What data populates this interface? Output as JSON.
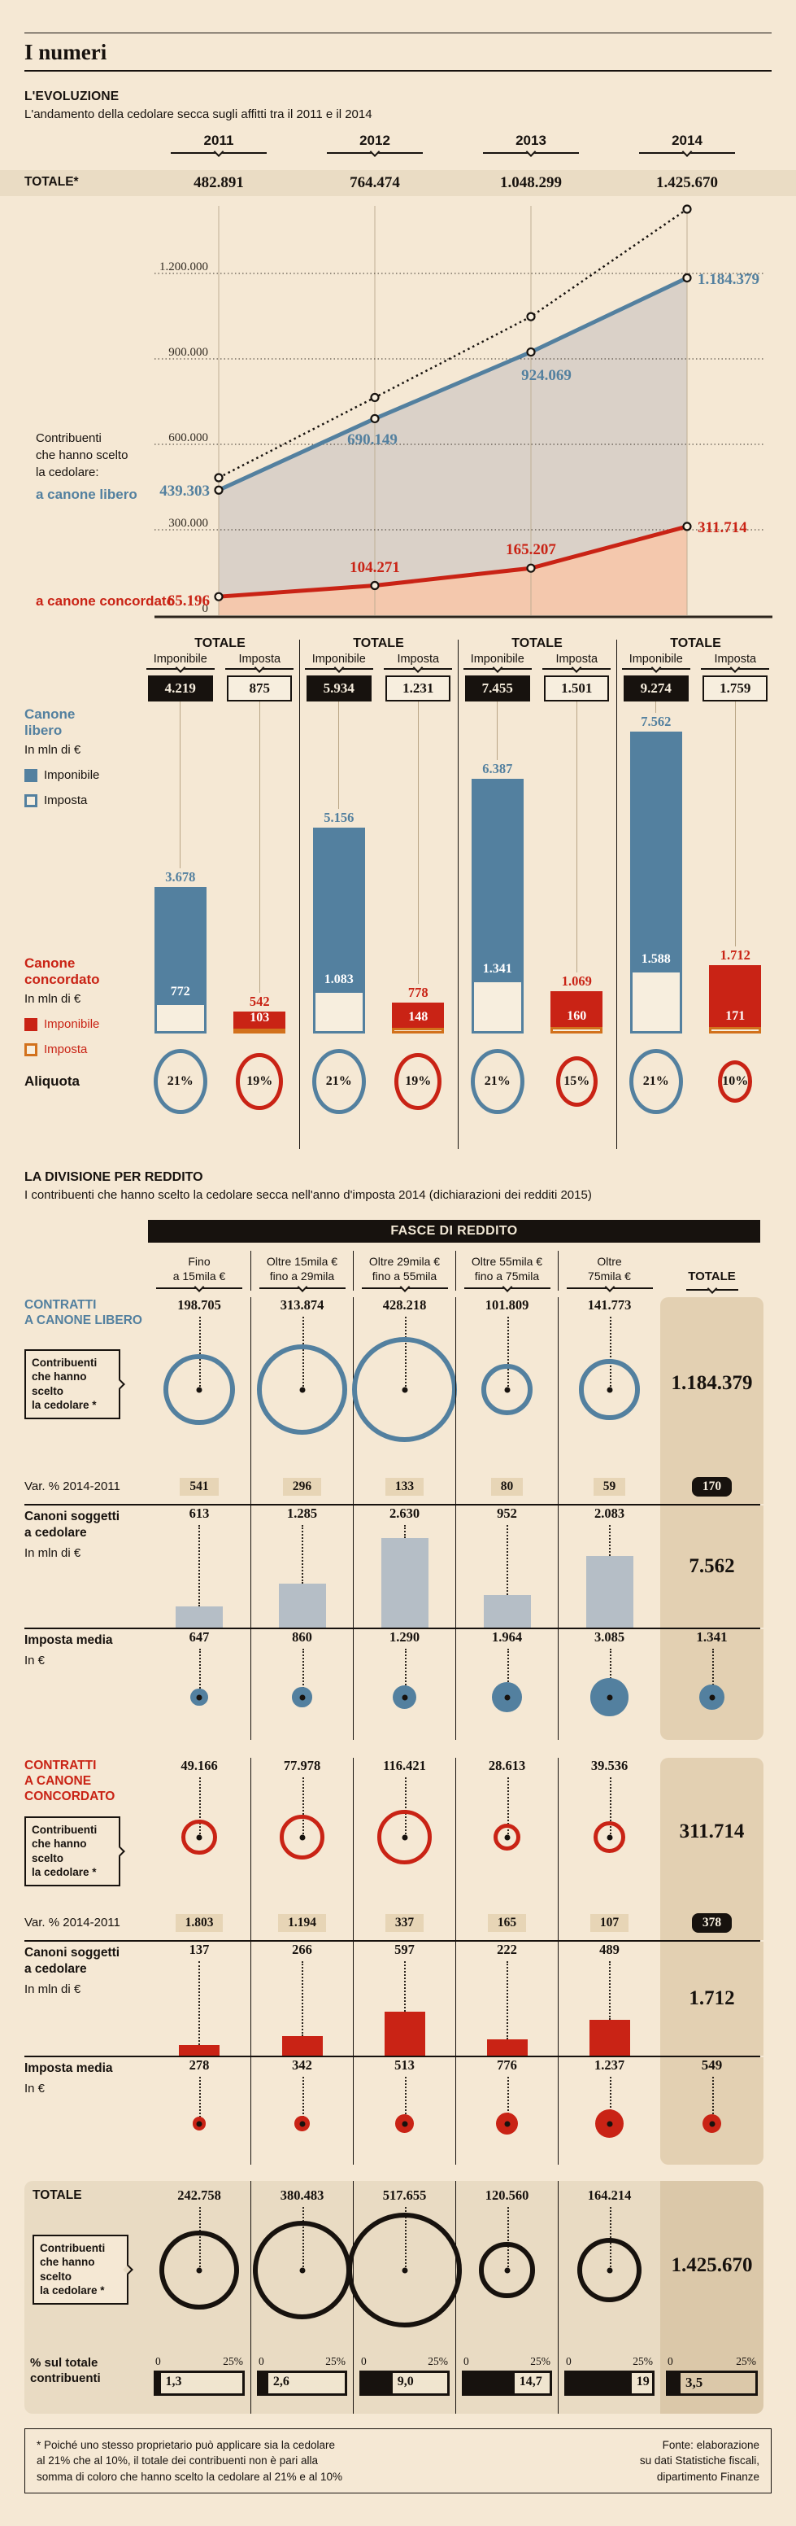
{
  "page": {
    "title": "I numeri"
  },
  "evoluzione": {
    "label": "L'EVOLUZIONE",
    "subtitle": "L'andamento della cedolare secca sugli affitti tra il 2011 e il 2014",
    "years": [
      "2011",
      "2012",
      "2013",
      "2014"
    ],
    "totale_label": "TOTALE*",
    "totali": [
      "482.891",
      "764.474",
      "1.048.299",
      "1.425.670"
    ],
    "axis": [
      "1.200.000",
      "900.000",
      "600.000",
      "300.000",
      "0"
    ],
    "legend": {
      "intro1": "Contribuenti",
      "intro2": "che hanno scelto",
      "intro3": "la cedolare:",
      "libero": "a canone libero",
      "concordato": "a canone concordato"
    },
    "libero": [
      "439.303",
      "690.149",
      "924.069",
      "1.184.379"
    ],
    "concordato": [
      "65.196",
      "104.271",
      "165.207",
      "311.714"
    ]
  },
  "bars": {
    "group_title": "TOTALE",
    "col_imponibile": "Imponibile",
    "col_imposta": "Imposta",
    "legend": {
      "libero1": "Canone",
      "libero2": "libero",
      "conc1": "Canone",
      "conc2": "concordato",
      "unit": "In mln di €",
      "imponibile": "Imponibile",
      "imposta": "Imposta"
    },
    "aliquota_label": "Aliquota",
    "groups": [
      {
        "imponibile": "4.219",
        "imposta": "875",
        "lib_imp": "3.678",
        "lib_tax": "772",
        "con_imp": "542",
        "con_tax": "103",
        "aliq_lib": "21%",
        "aliq_con": "19%"
      },
      {
        "imponibile": "5.934",
        "imposta": "1.231",
        "lib_imp": "5.156",
        "lib_tax": "1.083",
        "con_imp": "778",
        "con_tax": "148",
        "aliq_lib": "21%",
        "aliq_con": "19%"
      },
      {
        "imponibile": "7.455",
        "imposta": "1.501",
        "lib_imp": "6.387",
        "lib_tax": "1.341",
        "con_imp": "1.069",
        "con_tax": "160",
        "aliq_lib": "21%",
        "aliq_con": "15%"
      },
      {
        "imponibile": "9.274",
        "imposta": "1.759",
        "lib_imp": "7.562",
        "lib_tax": "1.588",
        "con_imp": "1.712",
        "con_tax": "171",
        "aliq_lib": "21%",
        "aliq_con": "10%"
      }
    ]
  },
  "divisione": {
    "title": "LA DIVISIONE PER REDDITO",
    "subtitle": "I contribuenti che hanno scelto la cedolare secca nell'anno d'imposta 2014 (dichiarazioni dei redditi 2015)",
    "banner": "FASCE DI REDDITO",
    "col_headers": [
      [
        "Fino",
        "a 15mila €"
      ],
      [
        "Oltre 15mila €",
        "fino a 29mila"
      ],
      [
        "Oltre 29mila €",
        "fino a 55mila"
      ],
      [
        "Oltre 55mila €",
        "fino a 75mila"
      ],
      [
        "Oltre",
        "75mila €"
      ]
    ],
    "totale_header": "TOTALE",
    "box_label": [
      "Contribuenti",
      "che hanno scelto",
      "la cedolare *"
    ],
    "var_label": "Var. % 2014-2011",
    "canoni_label": [
      "Canoni soggetti",
      "a cedolare"
    ],
    "unit_mln": "In mln di €",
    "imposta_label": "Imposta media",
    "unit_eur": "In €",
    "libero": {
      "title": [
        "CONTRATTI",
        "A CANONE LIBERO"
      ],
      "values": [
        "198.705",
        "313.874",
        "428.218",
        "101.809",
        "141.773"
      ],
      "totale": "1.184.379",
      "var": [
        "541",
        "296",
        "133",
        "80",
        "59"
      ],
      "var_tot": "170",
      "canoni": [
        "613",
        "1.285",
        "2.630",
        "952",
        "2.083"
      ],
      "canoni_tot": "7.562",
      "imposta": [
        "647",
        "860",
        "1.290",
        "1.964",
        "3.085"
      ],
      "imposta_tot": "1.341"
    },
    "concordato": {
      "title": [
        "CONTRATTI",
        "A CANONE",
        "CONCORDATO"
      ],
      "values": [
        "49.166",
        "77.978",
        "116.421",
        "28.613",
        "39.536"
      ],
      "totale": "311.714",
      "var": [
        "1.803",
        "1.194",
        "337",
        "165",
        "107"
      ],
      "var_tot": "378",
      "canoni": [
        "137",
        "266",
        "597",
        "222",
        "489"
      ],
      "canoni_tot": "1.712",
      "imposta": [
        "278",
        "342",
        "513",
        "776",
        "1.237"
      ],
      "imposta_tot": "549"
    },
    "totale": {
      "label": "TOTALE",
      "values": [
        "242.758",
        "380.483",
        "517.655",
        "120.560",
        "164.214"
      ],
      "totale": "1.425.670",
      "pct_label": [
        "% sul totale",
        "contribuenti"
      ],
      "scale_min": "0",
      "scale_max": "25%",
      "pct": [
        "1,3",
        "2,6",
        "9,0",
        "14,7",
        "19"
      ],
      "pct_tot": "3,5"
    }
  },
  "footer": {
    "note": [
      "* Poiché uno stesso proprietario può applicare sia la cedolare",
      "al 21% che al 10%, il totale dei contribuenti non è pari alla",
      "somma di coloro che hanno scelto la cedolare al 21% e al 10%"
    ],
    "source": [
      "Fonte: elaborazione",
      "su dati Statistiche fiscali,",
      "dipartimento Finanze"
    ]
  },
  "colors": {
    "blue": "#53809f",
    "red": "#c92315",
    "orange": "#d2711c",
    "background": "#f5e8d4",
    "band": "#eadcc4",
    "strip": "#e3d0b2",
    "gray_bar": "#b5bec6",
    "ink": "#17120e"
  },
  "chart_data": [
    {
      "type": "line",
      "title": "L'EVOLUZIONE — L'andamento della cedolare secca sugli affitti tra il 2011 e il 2014",
      "x": [
        2011,
        2012,
        2013,
        2014
      ],
      "series": [
        {
          "name": "Totale",
          "values": [
            482891,
            764474,
            1048299,
            1425670
          ]
        },
        {
          "name": "a canone libero",
          "values": [
            439303,
            690149,
            924069,
            1184379
          ]
        },
        {
          "name": "a canone concordato",
          "values": [
            65196,
            104271,
            165207,
            311714
          ]
        }
      ],
      "ylim": [
        0,
        1500000
      ],
      "yticks": [
        0,
        300000,
        600000,
        900000,
        1200000
      ],
      "legend_position": "left",
      "grid": true
    },
    {
      "type": "bar",
      "title": "Totale imponibile e imposta per anno (in mln di €) e aliquote",
      "categories": [
        "2011",
        "2012",
        "2013",
        "2014"
      ],
      "series": [
        {
          "name": "Totale imponibile",
          "values": [
            4219,
            5934,
            7455,
            9274
          ]
        },
        {
          "name": "Totale imposta",
          "values": [
            875,
            1231,
            1501,
            1759
          ]
        },
        {
          "name": "Canone libero imponibile",
          "values": [
            3678,
            5156,
            6387,
            7562
          ]
        },
        {
          "name": "Canone libero imposta",
          "values": [
            772,
            1083,
            1341,
            1588
          ]
        },
        {
          "name": "Canone concordato imponibile",
          "values": [
            542,
            778,
            1069,
            1712
          ]
        },
        {
          "name": "Canone concordato imposta",
          "values": [
            103,
            148,
            160,
            171
          ]
        },
        {
          "name": "Aliquota canone libero %",
          "values": [
            21,
            21,
            21,
            21
          ]
        },
        {
          "name": "Aliquota canone concordato %",
          "values": [
            19,
            19,
            15,
            10
          ]
        }
      ]
    },
    {
      "type": "table",
      "title": "LA DIVISIONE PER REDDITO — anno d'imposta 2014",
      "columns": [
        "Fino a 15mila €",
        "Oltre 15mila € fino a 29mila",
        "Oltre 29mila € fino a 55mila",
        "Oltre 55mila € fino a 75mila",
        "Oltre 75mila €",
        "Totale"
      ],
      "rows": [
        {
          "name": "Canone libero — contribuenti",
          "values": [
            198705,
            313874,
            428218,
            101809,
            141773,
            1184379
          ]
        },
        {
          "name": "Canone libero — var % 2014-2011",
          "values": [
            541,
            296,
            133,
            80,
            59,
            170
          ]
        },
        {
          "name": "Canone libero — canoni soggetti a cedolare (mln €)",
          "values": [
            613,
            1285,
            2630,
            952,
            2083,
            7562
          ]
        },
        {
          "name": "Canone libero — imposta media (€)",
          "values": [
            647,
            860,
            1290,
            1964,
            3085,
            1341
          ]
        },
        {
          "name": "Canone concordato — contribuenti",
          "values": [
            49166,
            77978,
            116421,
            28613,
            39536,
            311714
          ]
        },
        {
          "name": "Canone concordato — var % 2014-2011",
          "values": [
            1803,
            1194,
            337,
            165,
            107,
            378
          ]
        },
        {
          "name": "Canone concordato — canoni soggetti a cedolare (mln €)",
          "values": [
            137,
            266,
            597,
            222,
            489,
            1712
          ]
        },
        {
          "name": "Canone concordato — imposta media (€)",
          "values": [
            278,
            342,
            513,
            776,
            1237,
            549
          ]
        },
        {
          "name": "Totale — contribuenti",
          "values": [
            242758,
            380483,
            517655,
            120560,
            164214,
            1425670
          ]
        },
        {
          "name": "Totale — % sul totale contribuenti",
          "values": [
            1.3,
            2.6,
            9.0,
            14.7,
            19,
            3.5
          ]
        }
      ]
    }
  ]
}
